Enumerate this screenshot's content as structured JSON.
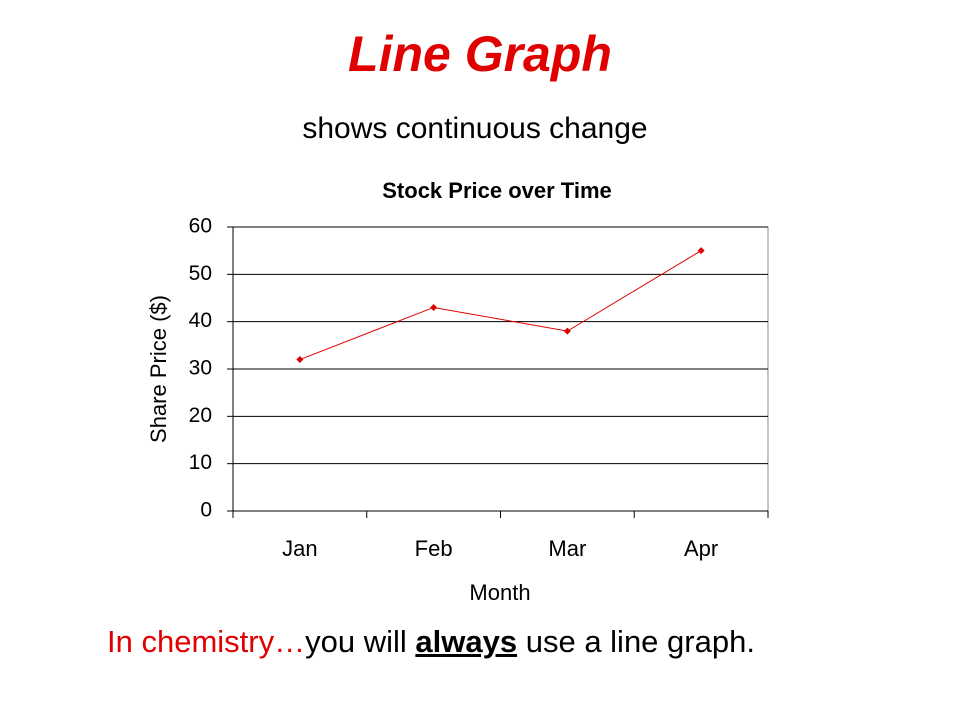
{
  "slide": {
    "title": "Line Graph",
    "subtitle": "shows continuous change",
    "footer": {
      "lead": "In chemistry…",
      "before": "you will",
      "emphasis": "always",
      "after": "use a line graph."
    }
  },
  "chart_data": {
    "type": "line",
    "title": "Stock Price over Time",
    "xlabel": "Month",
    "ylabel": "Share Price ($)",
    "categories": [
      "Jan",
      "Feb",
      "Mar",
      "Apr"
    ],
    "series": [
      {
        "name": "Share Price",
        "color": "#e00000",
        "values": [
          32,
          43,
          38,
          55
        ]
      }
    ],
    "ylim": [
      0,
      60
    ],
    "yticks": [
      0,
      10,
      20,
      30,
      40,
      50,
      60
    ],
    "grid": true,
    "legend": false
  }
}
